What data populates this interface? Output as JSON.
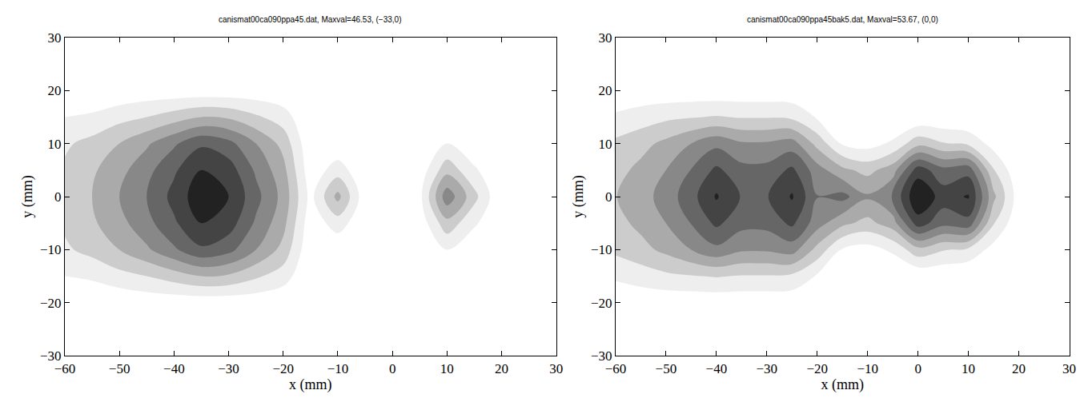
{
  "chart_data": [
    {
      "type": "contour",
      "title": "canismat00ca090ppa45.dat, Maxval=46.53, (−33,0)",
      "x_label": "x (mm)",
      "y_label": "y (mm)",
      "x": [
        -60,
        -55,
        -50,
        -45,
        -40,
        -35,
        -30,
        -25,
        -20,
        -15,
        -10,
        -5,
        0,
        5,
        10,
        15,
        20,
        25,
        30
      ],
      "y": [
        -25,
        -20,
        -15,
        -10,
        -5,
        0,
        5,
        10,
        15,
        20,
        25
      ],
      "z": [
        [
          0,
          0,
          0,
          0,
          0,
          0,
          0,
          0,
          0,
          0,
          0,
          0,
          0,
          0,
          0,
          0,
          0,
          0,
          0
        ],
        [
          1,
          1,
          1,
          2,
          2,
          2,
          2,
          2,
          1,
          0,
          0,
          0,
          0,
          0,
          0,
          0,
          0,
          0,
          0
        ],
        [
          6,
          7,
          10,
          12,
          15,
          18,
          17,
          13,
          9,
          0,
          0,
          0,
          0,
          0,
          0,
          0,
          0,
          0,
          0
        ],
        [
          11,
          14,
          18,
          23,
          29,
          35,
          32,
          24,
          16,
          1,
          1,
          0,
          0,
          0,
          6,
          1,
          0,
          0,
          0
        ],
        [
          13,
          17,
          22,
          28,
          35,
          42,
          39,
          29,
          20,
          2,
          9,
          1,
          0,
          2,
          16,
          7,
          0,
          0,
          0
        ],
        [
          14,
          18,
          24,
          30,
          38,
          46,
          42,
          32,
          22,
          4,
          20,
          2,
          0,
          4,
          28,
          14,
          0,
          0,
          0
        ],
        [
          13,
          17,
          22,
          28,
          35,
          42,
          39,
          29,
          20,
          2,
          9,
          1,
          0,
          2,
          16,
          7,
          0,
          0,
          0
        ],
        [
          11,
          14,
          18,
          23,
          29,
          35,
          32,
          24,
          16,
          1,
          1,
          0,
          0,
          0,
          6,
          1,
          0,
          0,
          0
        ],
        [
          6,
          7,
          10,
          12,
          15,
          18,
          17,
          13,
          9,
          0,
          0,
          0,
          0,
          0,
          0,
          0,
          0,
          0,
          0
        ],
        [
          1,
          1,
          1,
          2,
          2,
          2,
          2,
          2,
          1,
          0,
          0,
          0,
          0,
          0,
          0,
          0,
          0,
          0,
          0
        ],
        [
          0,
          0,
          0,
          0,
          0,
          0,
          0,
          0,
          0,
          0,
          0,
          0,
          0,
          0,
          0,
          0,
          0,
          0,
          0
        ]
      ],
      "zlim": [
        0,
        48
      ],
      "xlim": [
        -60,
        30
      ],
      "xticks": [
        {
          "value": -60,
          "label": "−60"
        },
        {
          "value": -50,
          "label": "−50"
        },
        {
          "value": -40,
          "label": "−40"
        },
        {
          "value": -30,
          "label": "−30"
        },
        {
          "value": -20,
          "label": "−20"
        },
        {
          "value": -10,
          "label": "−10"
        },
        0,
        10,
        20,
        30
      ],
      "ylim": [
        -30,
        30
      ],
      "yticks": [
        {
          "value": -30,
          "label": "−30"
        },
        {
          "value": -20,
          "label": "−20"
        },
        {
          "value": -10,
          "label": "−10"
        },
        0,
        10,
        20,
        30
      ]
    },
    {
      "type": "contour",
      "title": "canismat00ca090ppa45bak5.dat, Maxval=53.67, (0,0)",
      "x_label": "x (mm)",
      "y_label": "y (mm)",
      "x": [
        -60,
        -55,
        -50,
        -45,
        -40,
        -35,
        -30,
        -25,
        -20,
        -15,
        -10,
        -5,
        0,
        5,
        10,
        15,
        20,
        25,
        30
      ],
      "y": [
        -25,
        -20,
        -15,
        -10,
        -5,
        0,
        5,
        10,
        15,
        20,
        25
      ],
      "z": [
        [
          0,
          0,
          0,
          0,
          0,
          0,
          0,
          0,
          0,
          0,
          0,
          0,
          0,
          0,
          0,
          0,
          0,
          0,
          0
        ],
        [
          1,
          2,
          2,
          2,
          2,
          2,
          2,
          2,
          1,
          0,
          0,
          0,
          0,
          0,
          0,
          0,
          0,
          0,
          0
        ],
        [
          8,
          10,
          12,
          13,
          14,
          13,
          13,
          12,
          6,
          1,
          0,
          0,
          1,
          1,
          0,
          0,
          0,
          0,
          0
        ],
        [
          15,
          18,
          22,
          27,
          32,
          28,
          28,
          30,
          18,
          6,
          4,
          8,
          18,
          14,
          12,
          4,
          0,
          0,
          0
        ],
        [
          18,
          22,
          27,
          34,
          42,
          36,
          36,
          42,
          30,
          22,
          18,
          24,
          44,
          36,
          38,
          14,
          1,
          0,
          0
        ],
        [
          20,
          24,
          30,
          38,
          48,
          40,
          40,
          48,
          34,
          36,
          28,
          34,
          54,
          44,
          48,
          22,
          3,
          0,
          0
        ],
        [
          18,
          22,
          27,
          34,
          42,
          36,
          36,
          42,
          30,
          22,
          18,
          24,
          44,
          36,
          38,
          14,
          1,
          0,
          0
        ],
        [
          15,
          18,
          22,
          27,
          32,
          28,
          28,
          30,
          18,
          6,
          4,
          8,
          18,
          14,
          12,
          4,
          0,
          0,
          0
        ],
        [
          8,
          10,
          12,
          13,
          14,
          13,
          13,
          12,
          6,
          1,
          0,
          0,
          1,
          1,
          0,
          0,
          0,
          0,
          0
        ],
        [
          1,
          2,
          2,
          2,
          2,
          2,
          2,
          2,
          1,
          0,
          0,
          0,
          0,
          0,
          0,
          0,
          0,
          0,
          0
        ],
        [
          0,
          0,
          0,
          0,
          0,
          0,
          0,
          0,
          0,
          0,
          0,
          0,
          0,
          0,
          0,
          0,
          0,
          0,
          0
        ]
      ],
      "zlim": [
        0,
        54
      ],
      "xlim": [
        -60,
        30
      ],
      "xticks": [
        {
          "value": -60,
          "label": "−60"
        },
        {
          "value": -50,
          "label": "−50"
        },
        {
          "value": -40,
          "label": "−40"
        },
        {
          "value": -30,
          "label": "−30"
        },
        {
          "value": -20,
          "label": "−20"
        },
        {
          "value": -10,
          "label": "−10"
        },
        0,
        10,
        20,
        30
      ],
      "ylim": [
        -30,
        30
      ],
      "yticks": [
        {
          "value": -30,
          "label": "−30"
        },
        {
          "value": -20,
          "label": "−20"
        },
        {
          "value": -10,
          "label": "−10"
        },
        0,
        10,
        20,
        30
      ]
    }
  ]
}
